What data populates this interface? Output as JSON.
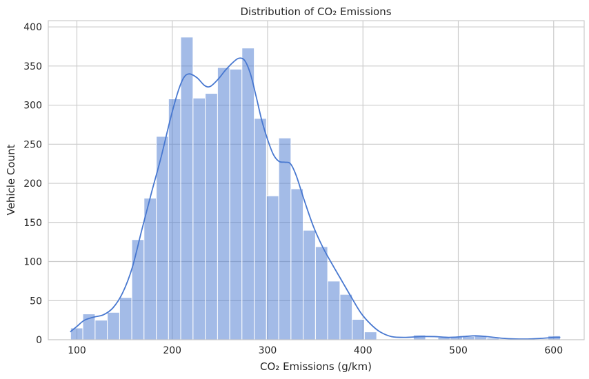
{
  "chart_data": {
    "type": "histogram",
    "title": "Distribution of CO₂ Emissions",
    "xlabel": "CO₂ Emissions (g/km)",
    "ylabel": "Vehicle Count",
    "xlim": [
      70,
      632
    ],
    "ylim": [
      0,
      408
    ],
    "x_ticks": [
      100,
      200,
      300,
      400,
      500,
      600
    ],
    "y_ticks": [
      0,
      50,
      100,
      150,
      200,
      250,
      300,
      350,
      400
    ],
    "grid": true,
    "bar_color": "#4878d0",
    "bar_opacity": 0.5,
    "kde_color": "#4878d0",
    "bins": [
      {
        "x0": 93.4,
        "x1": 106.2,
        "count": 15
      },
      {
        "x0": 106.2,
        "x1": 119.1,
        "count": 33
      },
      {
        "x0": 119.1,
        "x1": 131.9,
        "count": 25
      },
      {
        "x0": 131.9,
        "x1": 144.8,
        "count": 35
      },
      {
        "x0": 144.8,
        "x1": 157.6,
        "count": 54
      },
      {
        "x0": 157.6,
        "x1": 170.4,
        "count": 128
      },
      {
        "x0": 170.4,
        "x1": 183.3,
        "count": 181
      },
      {
        "x0": 183.3,
        "x1": 196.1,
        "count": 260
      },
      {
        "x0": 196.1,
        "x1": 208.9,
        "count": 308
      },
      {
        "x0": 208.9,
        "x1": 221.8,
        "count": 387
      },
      {
        "x0": 221.8,
        "x1": 234.6,
        "count": 309
      },
      {
        "x0": 234.6,
        "x1": 247.5,
        "count": 315
      },
      {
        "x0": 247.5,
        "x1": 260.3,
        "count": 348
      },
      {
        "x0": 260.3,
        "x1": 273.1,
        "count": 346
      },
      {
        "x0": 273.1,
        "x1": 286.0,
        "count": 373
      },
      {
        "x0": 286.0,
        "x1": 298.8,
        "count": 283
      },
      {
        "x0": 298.8,
        "x1": 311.7,
        "count": 184
      },
      {
        "x0": 311.7,
        "x1": 324.5,
        "count": 258
      },
      {
        "x0": 324.5,
        "x1": 337.3,
        "count": 193
      },
      {
        "x0": 337.3,
        "x1": 350.2,
        "count": 140
      },
      {
        "x0": 350.2,
        "x1": 363.0,
        "count": 119
      },
      {
        "x0": 363.0,
        "x1": 375.9,
        "count": 75
      },
      {
        "x0": 375.9,
        "x1": 388.7,
        "count": 58
      },
      {
        "x0": 388.7,
        "x1": 401.5,
        "count": 26
      },
      {
        "x0": 401.5,
        "x1": 414.4,
        "count": 10
      },
      {
        "x0": 414.4,
        "x1": 427.2,
        "count": 0
      },
      {
        "x0": 427.2,
        "x1": 440.1,
        "count": 0
      },
      {
        "x0": 440.1,
        "x1": 452.9,
        "count": 0
      },
      {
        "x0": 452.9,
        "x1": 465.7,
        "count": 6
      },
      {
        "x0": 465.7,
        "x1": 478.6,
        "count": 0
      },
      {
        "x0": 478.6,
        "x1": 491.4,
        "count": 3
      },
      {
        "x0": 491.4,
        "x1": 504.3,
        "count": 4
      },
      {
        "x0": 504.3,
        "x1": 517.1,
        "count": 4
      },
      {
        "x0": 517.1,
        "x1": 529.9,
        "count": 5
      },
      {
        "x0": 529.9,
        "x1": 542.8,
        "count": 2
      },
      {
        "x0": 542.8,
        "x1": 555.6,
        "count": 1
      },
      {
        "x0": 555.6,
        "x1": 568.4,
        "count": 1
      },
      {
        "x0": 568.4,
        "x1": 581.3,
        "count": 1
      },
      {
        "x0": 581.3,
        "x1": 594.1,
        "count": 1
      },
      {
        "x0": 594.1,
        "x1": 607.0,
        "count": 5
      }
    ],
    "kde": [
      {
        "x": 93,
        "y": 10
      },
      {
        "x": 100,
        "y": 17
      },
      {
        "x": 108,
        "y": 25
      },
      {
        "x": 118,
        "y": 29
      },
      {
        "x": 128,
        "y": 32
      },
      {
        "x": 138,
        "y": 41
      },
      {
        "x": 148,
        "y": 60
      },
      {
        "x": 158,
        "y": 92
      },
      {
        "x": 168,
        "y": 140
      },
      {
        "x": 178,
        "y": 187
      },
      {
        "x": 188,
        "y": 232
      },
      {
        "x": 198,
        "y": 282
      },
      {
        "x": 206,
        "y": 317
      },
      {
        "x": 212,
        "y": 335
      },
      {
        "x": 218,
        "y": 340
      },
      {
        "x": 226,
        "y": 335
      },
      {
        "x": 234,
        "y": 325
      },
      {
        "x": 240,
        "y": 324
      },
      {
        "x": 248,
        "y": 333
      },
      {
        "x": 256,
        "y": 345
      },
      {
        "x": 264,
        "y": 355
      },
      {
        "x": 270,
        "y": 360
      },
      {
        "x": 276,
        "y": 357
      },
      {
        "x": 282,
        "y": 340
      },
      {
        "x": 288,
        "y": 311
      },
      {
        "x": 294,
        "y": 280
      },
      {
        "x": 300,
        "y": 256
      },
      {
        "x": 306,
        "y": 237
      },
      {
        "x": 312,
        "y": 228
      },
      {
        "x": 318,
        "y": 227
      },
      {
        "x": 324,
        "y": 225
      },
      {
        "x": 330,
        "y": 210
      },
      {
        "x": 338,
        "y": 180
      },
      {
        "x": 348,
        "y": 145
      },
      {
        "x": 358,
        "y": 118
      },
      {
        "x": 368,
        "y": 96
      },
      {
        "x": 378,
        "y": 75
      },
      {
        "x": 388,
        "y": 54
      },
      {
        "x": 398,
        "y": 34
      },
      {
        "x": 408,
        "y": 20
      },
      {
        "x": 418,
        "y": 10
      },
      {
        "x": 430,
        "y": 4
      },
      {
        "x": 445,
        "y": 3
      },
      {
        "x": 460,
        "y": 4
      },
      {
        "x": 475,
        "y": 4
      },
      {
        "x": 490,
        "y": 3
      },
      {
        "x": 505,
        "y": 4
      },
      {
        "x": 518,
        "y": 5
      },
      {
        "x": 530,
        "y": 4
      },
      {
        "x": 545,
        "y": 2
      },
      {
        "x": 560,
        "y": 1
      },
      {
        "x": 575,
        "y": 1
      },
      {
        "x": 590,
        "y": 2
      },
      {
        "x": 600,
        "y": 3
      },
      {
        "x": 607,
        "y": 3
      }
    ]
  }
}
